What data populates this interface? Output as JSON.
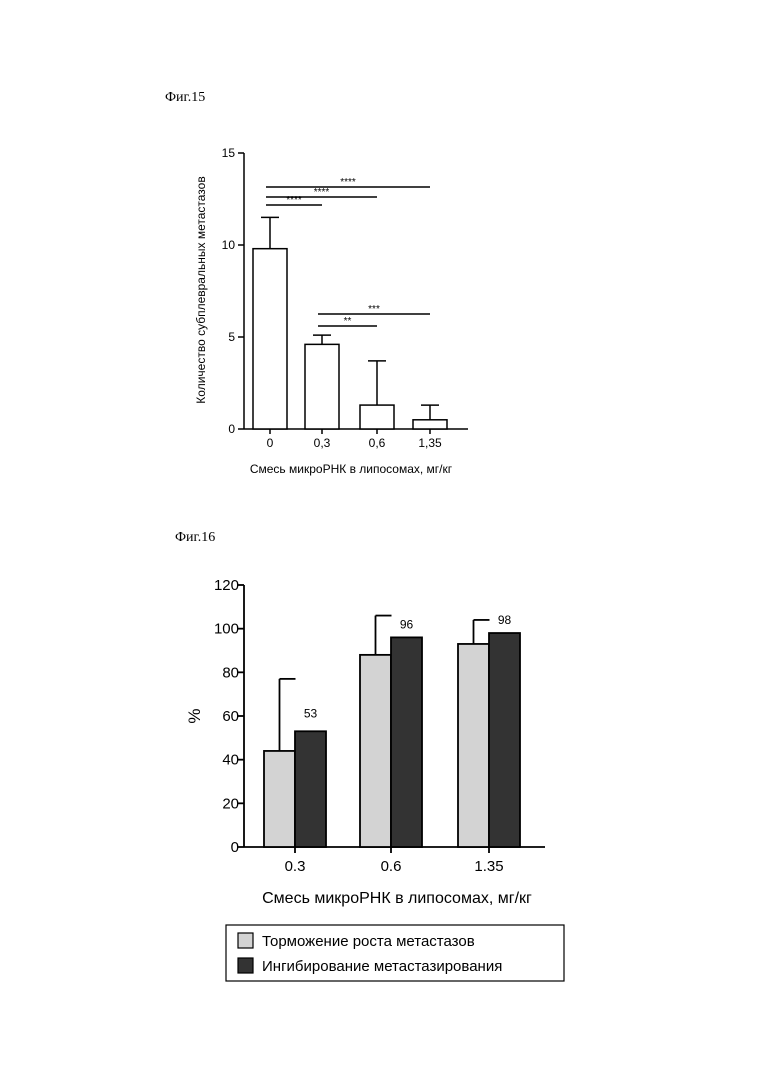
{
  "figures": {
    "fig15_label": "Фиг.15",
    "fig16_label": "Фиг.16"
  },
  "chart_data": [
    {
      "type": "bar",
      "categories": [
        "0",
        "0,3",
        "0,6",
        "1,35"
      ],
      "values": [
        9.8,
        4.6,
        1.3,
        0.5
      ],
      "errors": [
        1.7,
        0.5,
        2.4,
        0.8
      ],
      "ylabel": "Количество субплевральных метастазов",
      "xlabel": "Смесь микроРНК в липосомах, мг/кг",
      "ylim": [
        0,
        15
      ],
      "yticks": [
        "0",
        "5",
        "10",
        "15"
      ],
      "bar_color": "#ffffff",
      "significance": [
        {
          "from": 0,
          "to": 3,
          "label": "****"
        },
        {
          "from": 0,
          "to": 2,
          "label": "****"
        },
        {
          "from": 0,
          "to": 1,
          "label": "****"
        },
        {
          "from": 1,
          "to": 3,
          "label": "***"
        },
        {
          "from": 1,
          "to": 2,
          "label": "**"
        }
      ]
    },
    {
      "type": "bar",
      "categories": [
        "0.3",
        "0.6",
        "1.35"
      ],
      "series": [
        {
          "name": "Торможение роста метастазов",
          "values": [
            44,
            88,
            93
          ],
          "errors": [
            33,
            18,
            11
          ],
          "color": "#d3d3d3"
        },
        {
          "name": "Ингибирование метастазирования",
          "values": [
            53,
            96,
            98
          ],
          "data_labels": [
            "53",
            "96",
            "98"
          ],
          "color": "#333333"
        }
      ],
      "ylabel": "%",
      "xlabel": "Смесь микроРНК в липосомах, мг/кг",
      "ylim": [
        0,
        120
      ],
      "yticks": [
        "0",
        "20",
        "40",
        "60",
        "80",
        "100",
        "120"
      ],
      "legend_position": "bottom"
    }
  ]
}
